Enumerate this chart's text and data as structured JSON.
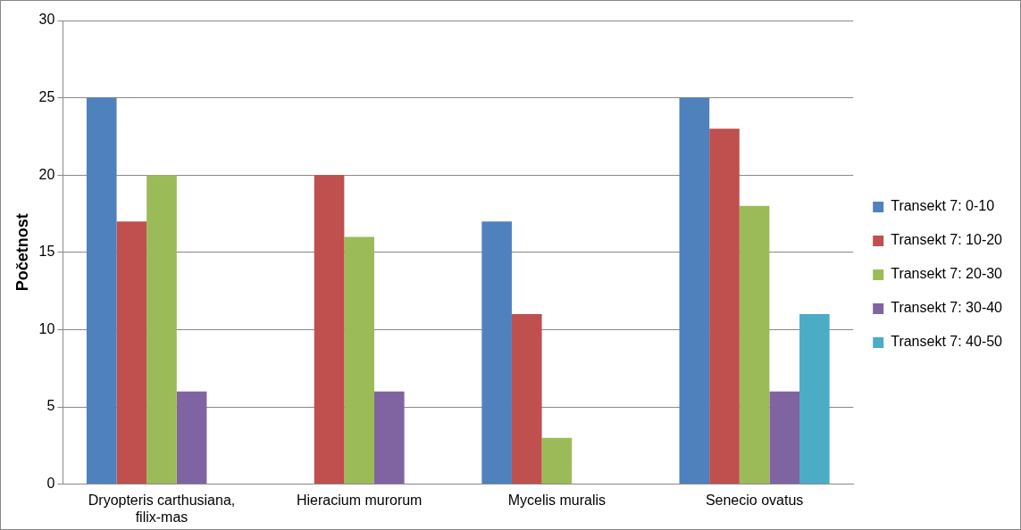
{
  "chart_data": {
    "type": "bar",
    "ylabel": "Početnost",
    "categories": [
      "Dryopteris carthusiana, filix-mas",
      "Hieracium murorum",
      "Mycelis muralis",
      "Senecio ovatus"
    ],
    "series": [
      {
        "name": "Transekt 7: 0-10",
        "color": "#4f81bd",
        "values": [
          25,
          0,
          17,
          25
        ]
      },
      {
        "name": "Transekt 7: 10-20",
        "color": "#c0504d",
        "values": [
          17,
          20,
          11,
          23
        ]
      },
      {
        "name": "Transekt 7: 20-30",
        "color": "#9bbb59",
        "values": [
          20,
          16,
          3,
          18
        ]
      },
      {
        "name": "Transekt 7: 30-40",
        "color": "#8064a2",
        "values": [
          6,
          6,
          0,
          6
        ]
      },
      {
        "name": "Transekt 7: 40-50",
        "color": "#4bacc6",
        "values": [
          0,
          0,
          0,
          11
        ]
      }
    ],
    "ylim": [
      0,
      30
    ],
    "yticks": [
      0,
      5,
      10,
      15,
      20,
      25,
      30
    ],
    "grid": "y",
    "legend": "right"
  }
}
